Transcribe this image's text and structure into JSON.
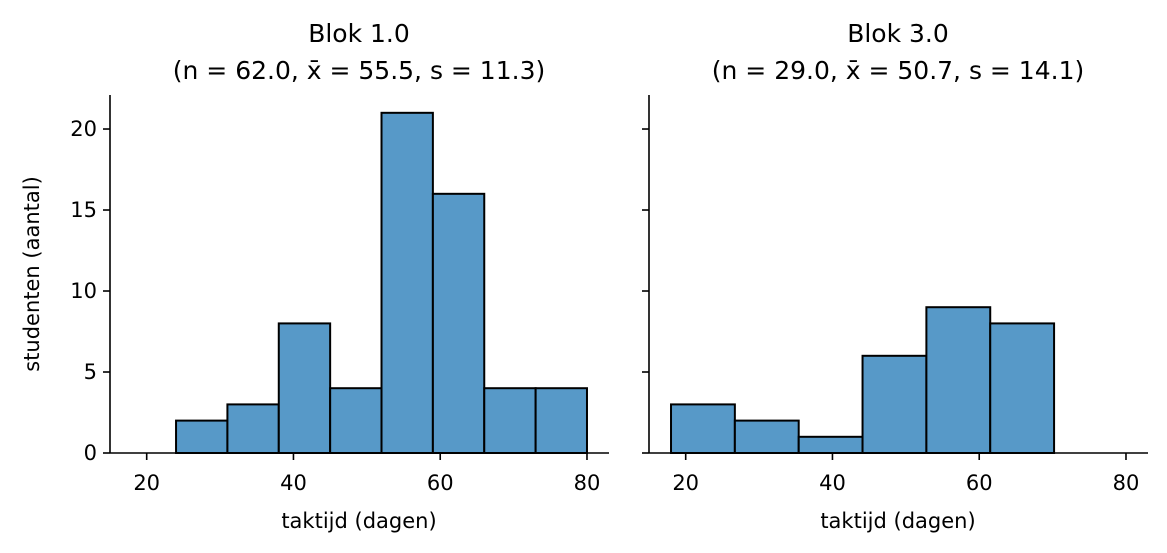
{
  "colors": {
    "bar_fill": "#5799c8",
    "bar_edge": "#000000",
    "axis": "#000000"
  },
  "chart_data": [
    {
      "type": "bar",
      "title": "Blok 1.0",
      "subtitle": "(n = 62.0, x̄ = 55.5, s = 11.3)",
      "xlabel": "taktijd (dagen)",
      "ylabel": "studenten (aantal)",
      "xlim": [
        15,
        83
      ],
      "ylim": [
        0,
        22.1
      ],
      "xticks": [
        20,
        40,
        60,
        80
      ],
      "yticks": [
        0,
        5,
        10,
        15,
        20
      ],
      "grid": false,
      "bins": [
        {
          "x0": 24.0,
          "x1": 31.0,
          "count": 2
        },
        {
          "x0": 31.0,
          "x1": 38.0,
          "count": 3
        },
        {
          "x0": 38.0,
          "x1": 45.0,
          "count": 8
        },
        {
          "x0": 45.0,
          "x1": 52.0,
          "count": 4
        },
        {
          "x0": 52.0,
          "x1": 59.0,
          "count": 21
        },
        {
          "x0": 59.0,
          "x1": 66.0,
          "count": 16
        },
        {
          "x0": 66.0,
          "x1": 73.0,
          "count": 4
        },
        {
          "x0": 73.0,
          "x1": 80.0,
          "count": 4
        }
      ]
    },
    {
      "type": "bar",
      "title": "Blok 3.0",
      "subtitle": "(n = 29.0, x̄ = 50.7, s = 14.1)",
      "xlabel": "taktijd (dagen)",
      "ylabel": "",
      "xlim": [
        15,
        83
      ],
      "ylim": [
        0,
        22.1
      ],
      "xticks": [
        20,
        40,
        60,
        80
      ],
      "yticks": [
        0,
        5,
        10,
        15,
        20
      ],
      "grid": false,
      "bins": [
        {
          "x0": 18.0,
          "x1": 26.7,
          "count": 3
        },
        {
          "x0": 26.7,
          "x1": 35.4,
          "count": 2
        },
        {
          "x0": 35.4,
          "x1": 44.1,
          "count": 1
        },
        {
          "x0": 44.1,
          "x1": 52.8,
          "count": 6
        },
        {
          "x0": 52.8,
          "x1": 61.5,
          "count": 9
        },
        {
          "x0": 61.5,
          "x1": 70.2,
          "count": 8
        }
      ]
    }
  ]
}
